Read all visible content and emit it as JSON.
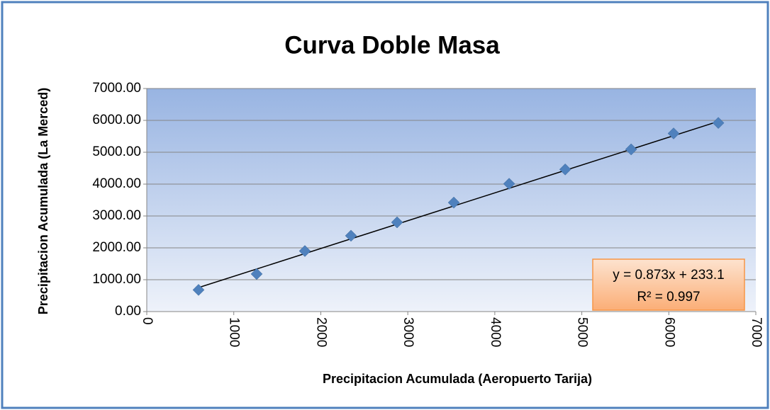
{
  "chart_data": {
    "type": "scatter",
    "title": "Curva Doble Masa",
    "xlabel": "Precipitacion Acumulada (Aeropuerto Tarija)",
    "ylabel": "Precipitacion Acumulada (La Merced)",
    "series": [
      {
        "name": "La Merced",
        "color": "#4f81bd",
        "x": [
          595,
          1263,
          1817,
          2347,
          2877,
          3529,
          4165,
          4809,
          5567,
          6055,
          6569
        ],
        "values": [
          680,
          1180,
          1900,
          2380,
          2800,
          3420,
          4010,
          4460,
          5090,
          5590,
          5920
        ]
      }
    ],
    "trendline": {
      "slope": 0.873,
      "intercept": 233.1,
      "equation": "y = 0.873x + 233.1",
      "r2": "R² = 0.997",
      "color": "#000000"
    },
    "xlim": [
      0,
      7000
    ],
    "xticks": [
      0,
      1000,
      2000,
      3000,
      4000,
      5000,
      6000,
      7000
    ],
    "ylim": [
      0,
      7000
    ],
    "yticks": [
      {
        "value": 0,
        "label": "0.00"
      },
      {
        "value": 1000,
        "label": "1000.00"
      },
      {
        "value": 2000,
        "label": "2000.00"
      },
      {
        "value": 3000,
        "label": "3000.00"
      },
      {
        "value": 4000,
        "label": "4000.00"
      },
      {
        "value": 5000,
        "label": "5000.00"
      },
      {
        "value": 6000,
        "label": "6000.00"
      },
      {
        "value": 7000,
        "label": "7000.00"
      }
    ],
    "grid": true
  }
}
